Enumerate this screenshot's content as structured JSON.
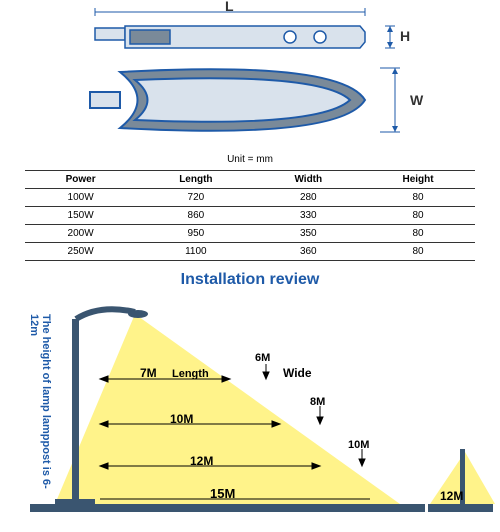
{
  "top_diagram": {
    "labels": {
      "L": "L",
      "H": "H",
      "W": "W"
    },
    "colors": {
      "line": "#1e5aa8",
      "fill_light": "#d9e2ec",
      "fill_dark": "#7a8a99"
    }
  },
  "table": {
    "unit_label": "Unit = mm",
    "headers": [
      "Power",
      "Length",
      "Width",
      "Height"
    ],
    "rows": [
      [
        "100W",
        "720",
        "280",
        "80"
      ],
      [
        "150W",
        "860",
        "330",
        "80"
      ],
      [
        "200W",
        "950",
        "350",
        "80"
      ],
      [
        "250W",
        "1100",
        "360",
        "80"
      ]
    ]
  },
  "install": {
    "title": "Installation review",
    "vertical_label": "The height of lamp lamppost is 6-12m",
    "rows": [
      {
        "length": "7M",
        "wide": "6M"
      },
      {
        "length": "10M",
        "wide": "8M"
      },
      {
        "length": "12M",
        "wide": "10M"
      },
      {
        "length": "15M",
        "wide": "12M"
      }
    ],
    "legend": {
      "length": "Length",
      "wide": "Wide"
    },
    "colors": {
      "pole": "#3a5570",
      "light_cone": "#fff38a",
      "line": "#1e5aa8",
      "ground": "#3a5570"
    }
  }
}
